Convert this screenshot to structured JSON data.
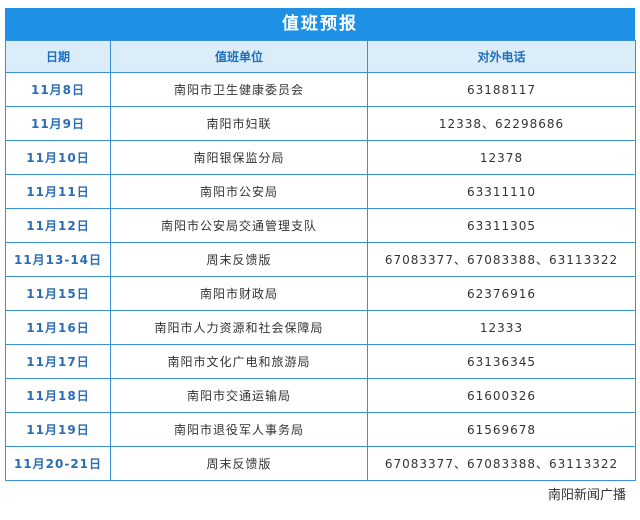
{
  "header": {
    "title": "值班预报"
  },
  "table": {
    "columns": [
      "日期",
      "值班单位",
      "对外电话"
    ],
    "rows": [
      [
        "11月8日",
        "南阳市卫生健康委员会",
        "63188117"
      ],
      [
        "11月9日",
        "南阳市妇联",
        "12338、62298686"
      ],
      [
        "11月10日",
        "南阳银保监分局",
        "12378"
      ],
      [
        "11月11日",
        "南阳市公安局",
        "63311110"
      ],
      [
        "11月12日",
        "南阳市公安局交通管理支队",
        "63311305"
      ],
      [
        "11月13-14日",
        "周末反馈版",
        "67083377、67083388、63113322"
      ],
      [
        "11月15日",
        "南阳市财政局",
        "62376916"
      ],
      [
        "11月16日",
        "南阳市人力资源和社会保障局",
        "12333"
      ],
      [
        "11月17日",
        "南阳市文化广电和旅游局",
        "63136345"
      ],
      [
        "11月18日",
        "南阳市交通运输局",
        "61600326"
      ],
      [
        "11月19日",
        "南阳市退役军人事务局",
        "61569678"
      ],
      [
        "11月20-21日",
        "周末反馈版",
        "67083377、67083388、63113322"
      ]
    ]
  },
  "watermark": "南阳新闻广播"
}
